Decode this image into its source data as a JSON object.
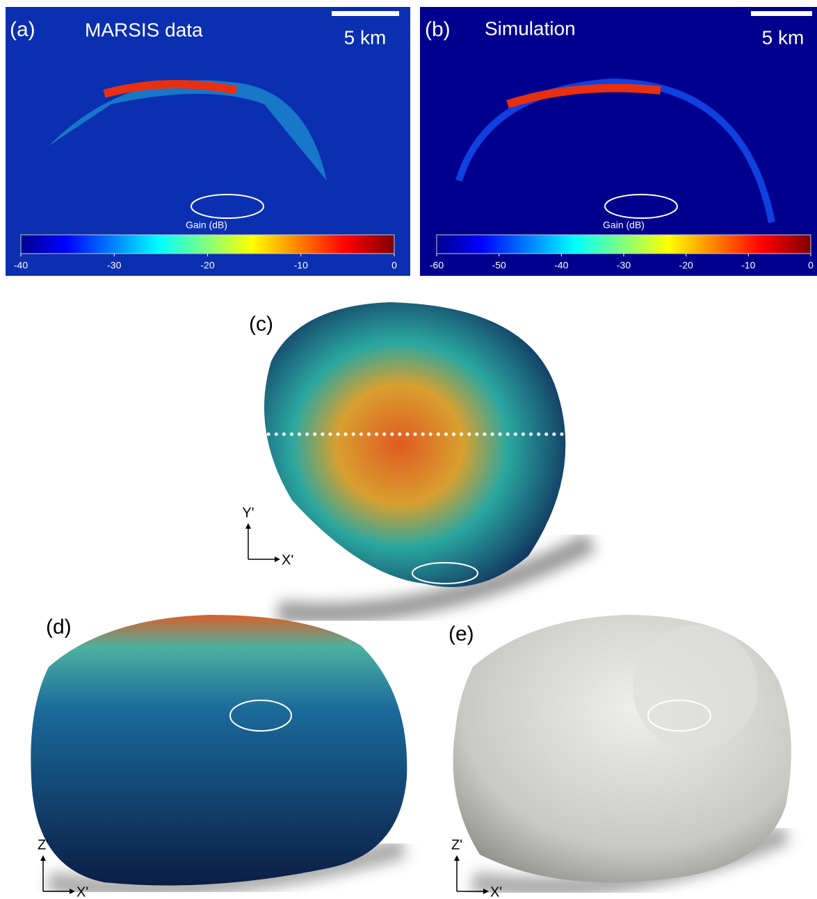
{
  "panels": [
    {
      "label": "(a)",
      "title": "MARSIS data",
      "scale_bar": "5 km",
      "colorbar": {
        "label": "Gain (dB)",
        "lim": [
          -40,
          0
        ],
        "ticks": [
          -40,
          -30,
          -20,
          -10,
          0
        ]
      }
    },
    {
      "label": "(b)",
      "title": "Simulation",
      "scale_bar": "5 km",
      "colorbar": {
        "label": "Gain (dB)",
        "lim": [
          -60,
          0
        ],
        "ticks": [
          -60,
          -50,
          -40,
          -30,
          -20,
          -10,
          0
        ]
      }
    },
    {
      "label": "(c)",
      "axes": {
        "vertical": "Y'",
        "horizontal": "X'"
      }
    },
    {
      "label": "(d)",
      "axes": {
        "vertical": "Z'",
        "horizontal": "X'"
      }
    },
    {
      "label": "(e)",
      "axes": {
        "vertical": "Z'",
        "horizontal": "X'"
      }
    }
  ]
}
